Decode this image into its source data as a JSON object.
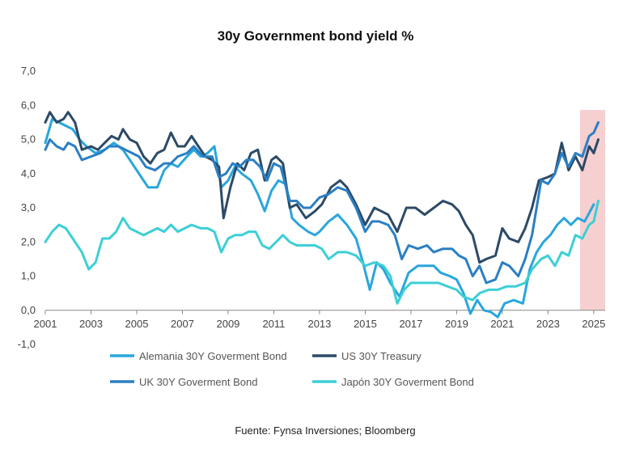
{
  "chart_data": {
    "type": "line",
    "title": "30y Government bond yield %",
    "source": "Fuente: Fynsa Inversiones; Bloomberg",
    "xlim": [
      2001,
      2025.5
    ],
    "ylim": [
      -1,
      7
    ],
    "x_tick_labels": [
      "2001",
      "2003",
      "2005",
      "2007",
      "2009",
      "2011",
      "2013",
      "2015",
      "2017",
      "2019",
      "2021",
      "2023",
      "2025"
    ],
    "y_tick_labels": [
      "7,0",
      "6,0",
      "5,0",
      "4,0",
      "3,0",
      "2,0",
      "1,0",
      "0,0",
      "-1,0"
    ],
    "highlight": {
      "from": 2024.4,
      "to": 2025.5,
      "color": "#f6d0d0"
    },
    "legend_position": "bottom",
    "series": [
      {
        "name": "Alemania 30Y Goverment Bond",
        "color": "#29a6dc",
        "points": [
          [
            2001,
            4.9
          ],
          [
            2001.3,
            5.6
          ],
          [
            2001.6,
            5.5
          ],
          [
            2001.9,
            5.4
          ],
          [
            2002.2,
            5.3
          ],
          [
            2002.5,
            5.0
          ],
          [
            2002.8,
            4.8
          ],
          [
            2003.2,
            4.6
          ],
          [
            2003.6,
            4.7
          ],
          [
            2004.0,
            4.9
          ],
          [
            2004.4,
            4.7
          ],
          [
            2004.8,
            4.3
          ],
          [
            2005.2,
            3.9
          ],
          [
            2005.5,
            3.6
          ],
          [
            2005.9,
            3.6
          ],
          [
            2006.2,
            4.1
          ],
          [
            2006.5,
            4.3
          ],
          [
            2006.8,
            4.2
          ],
          [
            2007.2,
            4.5
          ],
          [
            2007.5,
            4.7
          ],
          [
            2007.8,
            4.5
          ],
          [
            2008.1,
            4.6
          ],
          [
            2008.4,
            4.8
          ],
          [
            2008.7,
            3.6
          ],
          [
            2009.0,
            3.8
          ],
          [
            2009.3,
            4.2
          ],
          [
            2009.6,
            4.0
          ],
          [
            2010.0,
            3.8
          ],
          [
            2010.3,
            3.4
          ],
          [
            2010.6,
            2.9
          ],
          [
            2010.9,
            3.5
          ],
          [
            2011.2,
            3.8
          ],
          [
            2011.5,
            3.7
          ],
          [
            2011.8,
            2.7
          ],
          [
            2012.1,
            2.5
          ],
          [
            2012.5,
            2.3
          ],
          [
            2012.8,
            2.2
          ],
          [
            2013.0,
            2.3
          ],
          [
            2013.4,
            2.6
          ],
          [
            2013.8,
            2.8
          ],
          [
            2014.2,
            2.5
          ],
          [
            2014.6,
            2.1
          ],
          [
            2014.9,
            1.4
          ],
          [
            2015.2,
            0.6
          ],
          [
            2015.5,
            1.4
          ],
          [
            2015.8,
            1.2
          ],
          [
            2016.1,
            0.8
          ],
          [
            2016.5,
            0.4
          ],
          [
            2016.9,
            1.1
          ],
          [
            2017.3,
            1.3
          ],
          [
            2017.7,
            1.3
          ],
          [
            2018.0,
            1.3
          ],
          [
            2018.3,
            1.1
          ],
          [
            2018.7,
            1.0
          ],
          [
            2019.0,
            0.9
          ],
          [
            2019.3,
            0.5
          ],
          [
            2019.6,
            -0.1
          ],
          [
            2019.9,
            0.3
          ],
          [
            2020.2,
            0.0
          ],
          [
            2020.5,
            -0.05
          ],
          [
            2020.8,
            -0.2
          ],
          [
            2021.1,
            0.2
          ],
          [
            2021.5,
            0.3
          ],
          [
            2021.9,
            0.2
          ],
          [
            2022.2,
            1.2
          ],
          [
            2022.5,
            1.7
          ],
          [
            2022.8,
            2.0
          ],
          [
            2023.1,
            2.2
          ],
          [
            2023.4,
            2.5
          ],
          [
            2023.7,
            2.7
          ],
          [
            2024.0,
            2.5
          ],
          [
            2024.3,
            2.7
          ],
          [
            2024.6,
            2.6
          ],
          [
            2025.0,
            3.1
          ]
        ]
      },
      {
        "name": "US 30Y Treasury",
        "color": "#2c4a66",
        "points": [
          [
            2001,
            5.5
          ],
          [
            2001.2,
            5.8
          ],
          [
            2001.5,
            5.5
          ],
          [
            2001.8,
            5.6
          ],
          [
            2002.0,
            5.8
          ],
          [
            2002.3,
            5.5
          ],
          [
            2002.6,
            4.7
          ],
          [
            2003.0,
            4.8
          ],
          [
            2003.3,
            4.7
          ],
          [
            2003.6,
            4.9
          ],
          [
            2003.9,
            5.1
          ],
          [
            2004.2,
            5.0
          ],
          [
            2004.4,
            5.3
          ],
          [
            2004.7,
            5.0
          ],
          [
            2005.0,
            4.9
          ],
          [
            2005.3,
            4.5
          ],
          [
            2005.6,
            4.3
          ],
          [
            2005.9,
            4.6
          ],
          [
            2006.2,
            4.7
          ],
          [
            2006.5,
            5.2
          ],
          [
            2006.8,
            4.8
          ],
          [
            2007.1,
            4.8
          ],
          [
            2007.4,
            5.1
          ],
          [
            2007.7,
            4.8
          ],
          [
            2008.0,
            4.5
          ],
          [
            2008.3,
            4.4
          ],
          [
            2008.6,
            4.2
          ],
          [
            2008.8,
            2.7
          ],
          [
            2009.1,
            3.6
          ],
          [
            2009.4,
            4.3
          ],
          [
            2009.7,
            4.1
          ],
          [
            2010.0,
            4.6
          ],
          [
            2010.3,
            4.7
          ],
          [
            2010.6,
            3.8
          ],
          [
            2010.9,
            4.4
          ],
          [
            2011.1,
            4.5
          ],
          [
            2011.4,
            4.3
          ],
          [
            2011.7,
            3.0
          ],
          [
            2012.0,
            3.1
          ],
          [
            2012.4,
            2.7
          ],
          [
            2012.8,
            2.9
          ],
          [
            2013.1,
            3.1
          ],
          [
            2013.5,
            3.6
          ],
          [
            2013.9,
            3.8
          ],
          [
            2014.2,
            3.6
          ],
          [
            2014.6,
            3.1
          ],
          [
            2015.0,
            2.5
          ],
          [
            2015.4,
            3.0
          ],
          [
            2015.7,
            2.9
          ],
          [
            2016.0,
            2.8
          ],
          [
            2016.4,
            2.3
          ],
          [
            2016.8,
            3.0
          ],
          [
            2017.2,
            3.0
          ],
          [
            2017.6,
            2.8
          ],
          [
            2018.0,
            3.0
          ],
          [
            2018.4,
            3.2
          ],
          [
            2018.8,
            3.1
          ],
          [
            2019.1,
            2.9
          ],
          [
            2019.4,
            2.5
          ],
          [
            2019.7,
            2.2
          ],
          [
            2020.0,
            1.4
          ],
          [
            2020.3,
            1.5
          ],
          [
            2020.7,
            1.6
          ],
          [
            2021.0,
            2.4
          ],
          [
            2021.3,
            2.1
          ],
          [
            2021.7,
            2.0
          ],
          [
            2022.0,
            2.4
          ],
          [
            2022.3,
            3.0
          ],
          [
            2022.6,
            3.8
          ],
          [
            2023.0,
            3.9
          ],
          [
            2023.3,
            4.0
          ],
          [
            2023.6,
            4.9
          ],
          [
            2023.9,
            4.1
          ],
          [
            2024.2,
            4.5
          ],
          [
            2024.5,
            4.1
          ],
          [
            2024.8,
            4.8
          ],
          [
            2025.0,
            4.6
          ],
          [
            2025.2,
            5.0
          ]
        ]
      },
      {
        "name": "UK 30Y Goverment Bond",
        "color": "#2a7fc4",
        "points": [
          [
            2001,
            4.7
          ],
          [
            2001.2,
            5.0
          ],
          [
            2001.5,
            4.8
          ],
          [
            2001.8,
            4.7
          ],
          [
            2002.0,
            4.9
          ],
          [
            2002.3,
            4.8
          ],
          [
            2002.6,
            4.4
          ],
          [
            2003.0,
            4.5
          ],
          [
            2003.4,
            4.6
          ],
          [
            2003.8,
            4.8
          ],
          [
            2004.2,
            4.8
          ],
          [
            2004.5,
            4.7
          ],
          [
            2004.8,
            4.6
          ],
          [
            2005.1,
            4.5
          ],
          [
            2005.4,
            4.2
          ],
          [
            2005.8,
            4.1
          ],
          [
            2006.2,
            4.3
          ],
          [
            2006.5,
            4.3
          ],
          [
            2006.8,
            4.5
          ],
          [
            2007.2,
            4.6
          ],
          [
            2007.5,
            4.8
          ],
          [
            2007.9,
            4.5
          ],
          [
            2008.3,
            4.5
          ],
          [
            2008.6,
            3.9
          ],
          [
            2008.9,
            4.0
          ],
          [
            2009.2,
            4.3
          ],
          [
            2009.5,
            4.2
          ],
          [
            2009.8,
            4.4
          ],
          [
            2010.1,
            4.4
          ],
          [
            2010.4,
            4.2
          ],
          [
            2010.7,
            3.8
          ],
          [
            2011.0,
            4.3
          ],
          [
            2011.3,
            4.2
          ],
          [
            2011.7,
            3.2
          ],
          [
            2012.0,
            3.2
          ],
          [
            2012.3,
            3.0
          ],
          [
            2012.6,
            3.0
          ],
          [
            2013.0,
            3.3
          ],
          [
            2013.4,
            3.4
          ],
          [
            2013.8,
            3.6
          ],
          [
            2014.2,
            3.5
          ],
          [
            2014.6,
            3.0
          ],
          [
            2015.0,
            2.3
          ],
          [
            2015.3,
            2.6
          ],
          [
            2015.6,
            2.6
          ],
          [
            2016.0,
            2.5
          ],
          [
            2016.3,
            2.2
          ],
          [
            2016.6,
            1.5
          ],
          [
            2016.9,
            1.9
          ],
          [
            2017.3,
            1.8
          ],
          [
            2017.7,
            1.9
          ],
          [
            2018.0,
            1.7
          ],
          [
            2018.4,
            1.8
          ],
          [
            2018.8,
            1.8
          ],
          [
            2019.1,
            1.6
          ],
          [
            2019.4,
            1.5
          ],
          [
            2019.7,
            1.0
          ],
          [
            2020.0,
            1.3
          ],
          [
            2020.3,
            0.8
          ],
          [
            2020.7,
            0.9
          ],
          [
            2021.0,
            1.4
          ],
          [
            2021.3,
            1.3
          ],
          [
            2021.7,
            1.0
          ],
          [
            2022.0,
            1.5
          ],
          [
            2022.3,
            2.2
          ],
          [
            2022.7,
            3.8
          ],
          [
            2023.0,
            3.7
          ],
          [
            2023.3,
            4.0
          ],
          [
            2023.6,
            4.6
          ],
          [
            2023.9,
            4.2
          ],
          [
            2024.2,
            4.6
          ],
          [
            2024.5,
            4.5
          ],
          [
            2024.8,
            5.1
          ],
          [
            2025.0,
            5.2
          ],
          [
            2025.2,
            5.5
          ]
        ]
      },
      {
        "name": "Japón 30Y Goverment Bond",
        "color": "#3ccfd6",
        "points": [
          [
            2001,
            2.0
          ],
          [
            2001.3,
            2.3
          ],
          [
            2001.6,
            2.5
          ],
          [
            2001.9,
            2.4
          ],
          [
            2002.2,
            2.1
          ],
          [
            2002.6,
            1.7
          ],
          [
            2002.9,
            1.2
          ],
          [
            2003.2,
            1.4
          ],
          [
            2003.5,
            2.1
          ],
          [
            2003.8,
            2.1
          ],
          [
            2004.1,
            2.3
          ],
          [
            2004.4,
            2.7
          ],
          [
            2004.7,
            2.4
          ],
          [
            2005.0,
            2.3
          ],
          [
            2005.3,
            2.2
          ],
          [
            2005.6,
            2.3
          ],
          [
            2005.9,
            2.4
          ],
          [
            2006.2,
            2.3
          ],
          [
            2006.5,
            2.5
          ],
          [
            2006.8,
            2.3
          ],
          [
            2007.1,
            2.4
          ],
          [
            2007.4,
            2.5
          ],
          [
            2007.8,
            2.4
          ],
          [
            2008.1,
            2.4
          ],
          [
            2008.4,
            2.3
          ],
          [
            2008.7,
            1.7
          ],
          [
            2009.0,
            2.1
          ],
          [
            2009.3,
            2.2
          ],
          [
            2009.6,
            2.2
          ],
          [
            2009.9,
            2.3
          ],
          [
            2010.2,
            2.3
          ],
          [
            2010.5,
            1.9
          ],
          [
            2010.8,
            1.8
          ],
          [
            2011.1,
            2.0
          ],
          [
            2011.4,
            2.2
          ],
          [
            2011.7,
            2.0
          ],
          [
            2012.0,
            1.9
          ],
          [
            2012.4,
            1.9
          ],
          [
            2012.8,
            1.9
          ],
          [
            2013.1,
            1.8
          ],
          [
            2013.4,
            1.5
          ],
          [
            2013.8,
            1.7
          ],
          [
            2014.2,
            1.7
          ],
          [
            2014.6,
            1.6
          ],
          [
            2015.0,
            1.3
          ],
          [
            2015.4,
            1.4
          ],
          [
            2015.8,
            1.3
          ],
          [
            2016.1,
            1.0
          ],
          [
            2016.4,
            0.2
          ],
          [
            2016.7,
            0.6
          ],
          [
            2017.0,
            0.8
          ],
          [
            2017.4,
            0.8
          ],
          [
            2017.8,
            0.8
          ],
          [
            2018.2,
            0.8
          ],
          [
            2018.6,
            0.7
          ],
          [
            2019.0,
            0.6
          ],
          [
            2019.3,
            0.4
          ],
          [
            2019.7,
            0.3
          ],
          [
            2020.0,
            0.5
          ],
          [
            2020.4,
            0.6
          ],
          [
            2020.8,
            0.6
          ],
          [
            2021.2,
            0.7
          ],
          [
            2021.6,
            0.7
          ],
          [
            2022.0,
            0.8
          ],
          [
            2022.3,
            1.2
          ],
          [
            2022.7,
            1.5
          ],
          [
            2023.0,
            1.6
          ],
          [
            2023.3,
            1.3
          ],
          [
            2023.6,
            1.7
          ],
          [
            2023.9,
            1.6
          ],
          [
            2024.2,
            2.2
          ],
          [
            2024.5,
            2.1
          ],
          [
            2024.8,
            2.5
          ],
          [
            2025.0,
            2.6
          ],
          [
            2025.2,
            3.2
          ]
        ]
      }
    ]
  }
}
